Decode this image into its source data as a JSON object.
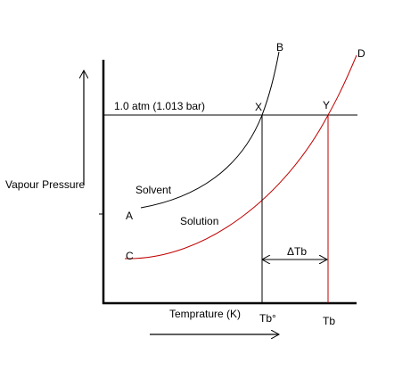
{
  "labels": {
    "curve_b": "B",
    "curve_d": "D",
    "pressure_line": "1.0 atm (1.013 bar)",
    "point_x": "X",
    "point_y": "Y",
    "y_axis": "Vapour Pressure",
    "solvent": "Solvent",
    "point_a": "A",
    "solution": "Solution",
    "point_c": "C",
    "delta": "ΔTb",
    "x_axis": "Temprature (K)",
    "tb_solvent": "Tb°",
    "tb_solution": "Tb"
  }
}
